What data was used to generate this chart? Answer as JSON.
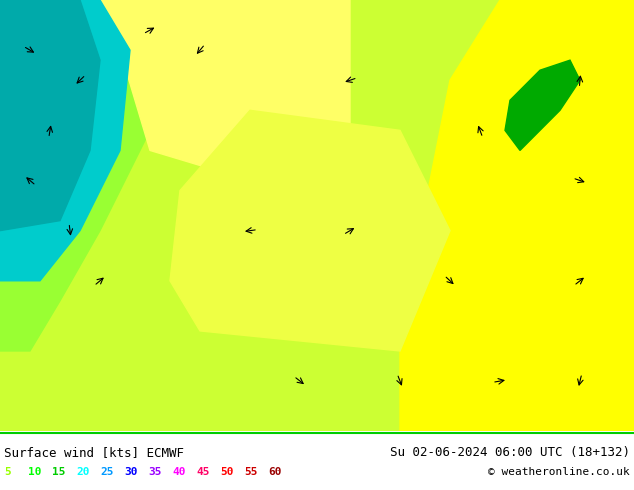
{
  "title_left": "Surface wind [kts] ECMWF",
  "title_right": "Su 02-06-2024 06:00 UTC (18+132)",
  "copyright": "© weatheronline.co.uk",
  "legend_values": [
    5,
    10,
    15,
    20,
    25,
    30,
    35,
    40,
    45,
    50,
    55,
    60
  ],
  "legend_colors": [
    "#99ff00",
    "#00ff00",
    "#00cc00",
    "#00ffff",
    "#0099ff",
    "#0000ff",
    "#9900ff",
    "#ff00ff",
    "#ff0066",
    "#ff0000",
    "#cc0000",
    "#990000"
  ],
  "bg_color": "#ffffff",
  "fig_width": 6.34,
  "fig_height": 4.9,
  "dpi": 100,
  "map_colors": {
    "yellow_green": "#ccff00",
    "light_yellow": "#ffff66",
    "yellow": "#ffff00",
    "green": "#00cc00",
    "cyan": "#00ffff",
    "light_green_map": "#99ff33"
  }
}
